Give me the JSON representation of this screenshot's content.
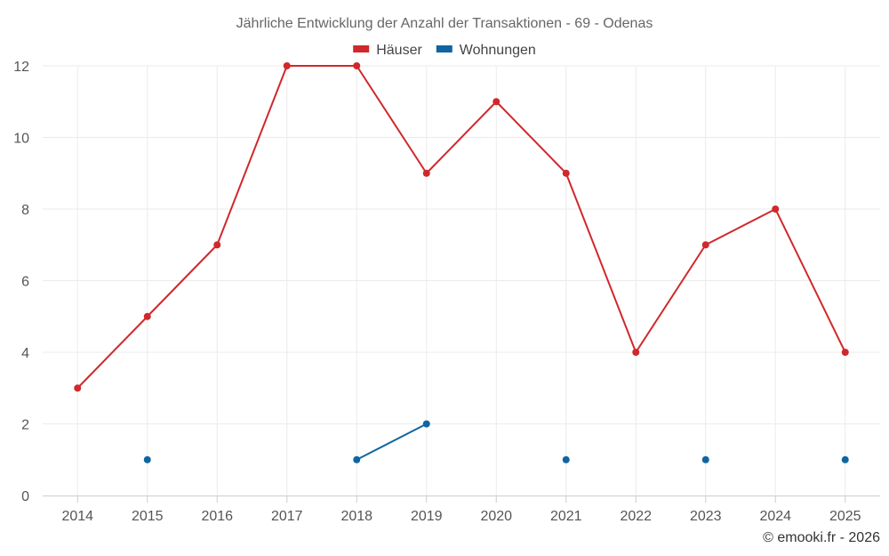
{
  "chart_data": {
    "type": "line",
    "title": "Jährliche Entwicklung der Anzahl der Transaktionen - 69 - Odenas",
    "xlabel": "",
    "ylabel": "",
    "categories": [
      "2014",
      "2015",
      "2016",
      "2017",
      "2018",
      "2019",
      "2020",
      "2021",
      "2022",
      "2023",
      "2024",
      "2025"
    ],
    "ylim": [
      0,
      12
    ],
    "yticks": [
      0,
      2,
      4,
      6,
      8,
      10,
      12
    ],
    "grid": true,
    "legend_position": "top-center",
    "series": [
      {
        "name": "Häuser",
        "color": "#d0282c",
        "values": [
          3,
          5,
          7,
          12,
          12,
          9,
          11,
          9,
          4,
          7,
          8,
          4
        ]
      },
      {
        "name": "Wohnungen",
        "color": "#1065a0",
        "values": [
          null,
          1,
          null,
          null,
          1,
          2,
          null,
          1,
          null,
          1,
          null,
          1
        ]
      }
    ],
    "credit": "© emooki.fr - 2026"
  }
}
